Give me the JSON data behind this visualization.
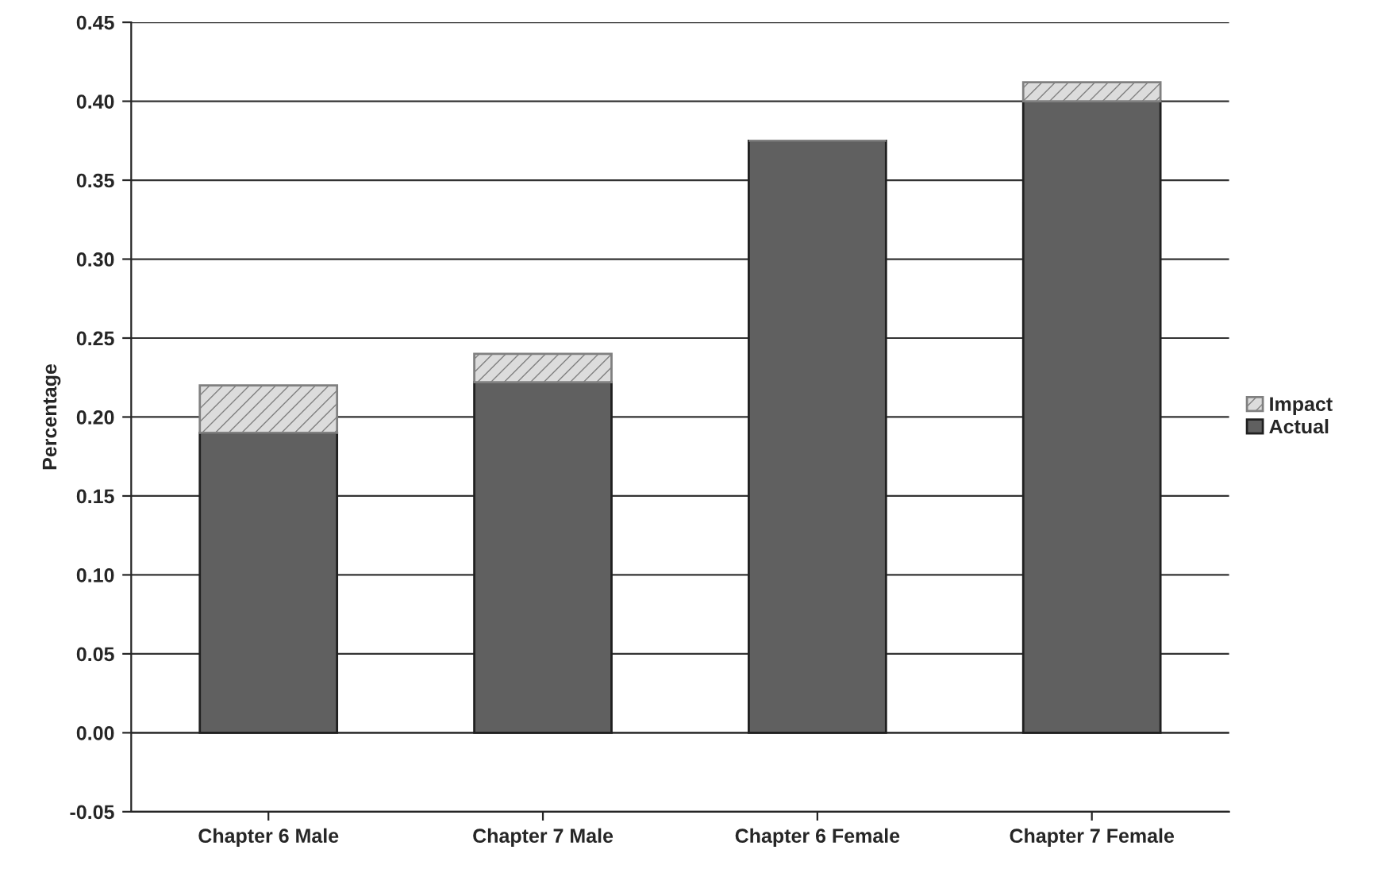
{
  "chart_data": {
    "type": "bar",
    "ylabel": "Percentage",
    "stacked": true,
    "categories": [
      "Chapter 6 Male",
      "Chapter 7 Male",
      "Chapter 6 Female",
      "Chapter 7 Female"
    ],
    "series": [
      {
        "name": "Actual",
        "color": "#606060",
        "values": [
          0.19,
          0.222,
          0.375,
          0.4
        ]
      },
      {
        "name": "Impact",
        "color": "#808080",
        "values": [
          0.03,
          0.018,
          0,
          0.012
        ]
      }
    ],
    "ylim": [
      -0.05,
      0.45
    ],
    "yticks": [
      {
        "value": -0.05,
        "label": "-0.05"
      },
      {
        "value": 0,
        "label": "0.00"
      },
      {
        "value": 0.05,
        "label": "0.05"
      },
      {
        "value": 0.1,
        "label": "0.10"
      },
      {
        "value": 0.15,
        "label": "0.15"
      },
      {
        "value": 0.2,
        "label": "0.20"
      },
      {
        "value": 0.25,
        "label": "0.25"
      },
      {
        "value": 0.3,
        "label": "0.30"
      },
      {
        "value": 0.35,
        "label": "0.35"
      },
      {
        "value": 0.4,
        "label": "0.40"
      },
      {
        "value": 0.45,
        "label": "0.45"
      }
    ],
    "grid": "y",
    "legend": "right"
  }
}
